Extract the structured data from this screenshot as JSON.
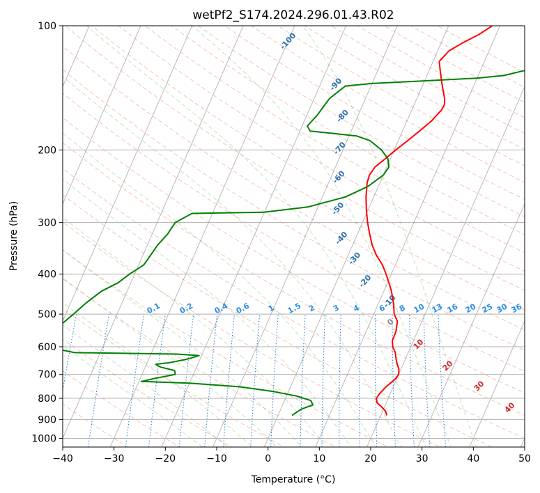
{
  "chart_data": {
    "type": "line",
    "subtype": "skew-t log-p diagram",
    "title": "wetPf2_S174.2024.296.01.43.R02",
    "xlabel": "Temperature (°C)",
    "ylabel": "Pressure (hPa)",
    "xlim": [
      -40,
      50
    ],
    "ylim": [
      1050,
      100
    ],
    "y_scale": "log",
    "grid": true,
    "x_ticks": [
      -40,
      -30,
      -20,
      -10,
      0,
      10,
      20,
      30,
      40,
      50
    ],
    "x_tick_labels": [
      "−40",
      "−30",
      "−20",
      "−10",
      "0",
      "10",
      "20",
      "30",
      "40",
      "50"
    ],
    "y_ticks": [
      1000,
      900,
      800,
      700,
      600,
      500,
      400,
      300,
      200,
      100
    ],
    "y_tick_labels": [
      "1000",
      "900",
      "800",
      "700",
      "600",
      "500",
      "400",
      "300",
      "200",
      "100"
    ],
    "series": [
      {
        "role": "temperature",
        "color": "#ff0000",
        "points": [
          [
            880,
            21.2
          ],
          [
            860,
            20.6
          ],
          [
            840,
            19.5
          ],
          [
            820,
            18.2
          ],
          [
            800,
            17.7
          ],
          [
            780,
            17.9
          ],
          [
            750,
            18.6
          ],
          [
            720,
            19.7
          ],
          [
            700,
            20.0
          ],
          [
            680,
            19.6
          ],
          [
            660,
            18.8
          ],
          [
            640,
            18.1
          ],
          [
            620,
            17.5
          ],
          [
            600,
            16.5
          ],
          [
            580,
            15.9
          ],
          [
            550,
            15.8
          ],
          [
            520,
            15.2
          ],
          [
            500,
            14.0
          ],
          [
            470,
            12.9
          ],
          [
            440,
            11.5
          ],
          [
            420,
            10.3
          ],
          [
            400,
            9.0
          ],
          [
            380,
            7.5
          ],
          [
            360,
            5.5
          ],
          [
            340,
            3.8
          ],
          [
            320,
            2.4
          ],
          [
            300,
            1.0
          ],
          [
            280,
            -0.3
          ],
          [
            260,
            -1.5
          ],
          [
            240,
            -2.5
          ],
          [
            230,
            -2.7
          ],
          [
            220,
            -2.3
          ],
          [
            210,
            -1.0
          ],
          [
            200,
            0.3
          ],
          [
            190,
            1.8
          ],
          [
            180,
            3.3
          ],
          [
            170,
            4.8
          ],
          [
            160,
            5.8
          ],
          [
            155,
            5.9
          ],
          [
            150,
            5.4
          ],
          [
            140,
            3.9
          ],
          [
            130,
            2.4
          ],
          [
            122,
            1.2
          ],
          [
            115,
            2.2
          ],
          [
            110,
            4.2
          ],
          [
            105,
            6.6
          ],
          [
            100,
            8.5
          ]
        ]
      },
      {
        "role": "dewpoint",
        "color": "#008000",
        "points": [
          [
            880,
            2.7
          ],
          [
            850,
            4.0
          ],
          [
            830,
            5.9
          ],
          [
            810,
            5.1
          ],
          [
            790,
            2.0
          ],
          [
            770,
            -3.0
          ],
          [
            750,
            -10.0
          ],
          [
            735,
            -20.0
          ],
          [
            728,
            -29.5
          ],
          [
            715,
            -27.0
          ],
          [
            700,
            -23.5
          ],
          [
            685,
            -24.0
          ],
          [
            672,
            -27.0
          ],
          [
            662,
            -28.2
          ],
          [
            655,
            -25.5
          ],
          [
            645,
            -23.0
          ],
          [
            640,
            -22.0
          ],
          [
            630,
            -20.5
          ],
          [
            625,
            -25.0
          ],
          [
            620,
            -45.0
          ],
          [
            600,
            -51.0
          ],
          [
            570,
            -52.0
          ],
          [
            540,
            -50.5
          ],
          [
            500,
            -48.5
          ],
          [
            470,
            -47.0
          ],
          [
            440,
            -45.0
          ],
          [
            420,
            -42.5
          ],
          [
            400,
            -41.0
          ],
          [
            380,
            -39.0
          ],
          [
            360,
            -38.5
          ],
          [
            340,
            -38.0
          ],
          [
            320,
            -37.0
          ],
          [
            300,
            -36.5
          ],
          [
            285,
            -34.0
          ],
          [
            283,
            -20.0
          ],
          [
            275,
            -12.0
          ],
          [
            260,
            -5.5
          ],
          [
            245,
            -2.0
          ],
          [
            230,
            0.0
          ],
          [
            220,
            0.4
          ],
          [
            210,
            -0.5
          ],
          [
            200,
            -2.5
          ],
          [
            190,
            -5.5
          ],
          [
            185,
            -8.5
          ],
          [
            182,
            -14.0
          ],
          [
            180,
            -18.0
          ],
          [
            175,
            -19.0
          ],
          [
            165,
            -18.0
          ],
          [
            150,
            -17.0
          ],
          [
            140,
            -15.0
          ],
          [
            138,
            -10.0
          ],
          [
            136,
            0.0
          ],
          [
            134,
            10.0
          ],
          [
            132,
            15.0
          ],
          [
            128,
            19.0
          ],
          [
            122,
            23.0
          ],
          [
            115,
            26.0
          ],
          [
            108,
            28.0
          ],
          [
            103,
            30.0
          ],
          [
            100,
            31.5
          ]
        ]
      }
    ],
    "dry_adiabat_labels": [
      "-100",
      "-90",
      "-80",
      "-70",
      "-60",
      "-50",
      "-40",
      "-30",
      "-20",
      "-10"
    ],
    "mixing_ratio_labels": [
      "0.1",
      "0.2",
      "0.4",
      "0.6",
      "1",
      "1.5",
      "2",
      "3",
      "4",
      "6",
      "8",
      "10",
      "13",
      "16",
      "20",
      "25",
      "30",
      "36"
    ],
    "mixing_ratio_values": [
      0.1,
      0.2,
      0.4,
      0.6,
      1,
      1.5,
      2,
      3,
      4,
      6,
      8,
      10,
      13,
      16,
      20,
      25,
      30,
      36
    ],
    "moist_adiabat_labels": [
      "0",
      "10",
      "20",
      "30",
      "40"
    ],
    "background_lines": {
      "isotherms": "gray",
      "dry_adiabats": "#e8795a",
      "moist_adiabats": "#7bbf72",
      "mixing_ratios": "#1f77d6"
    }
  }
}
